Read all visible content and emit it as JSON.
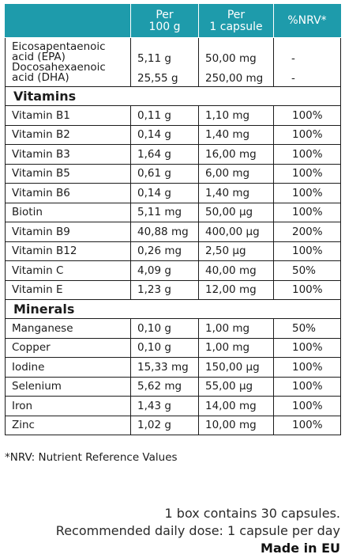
{
  "table": {
    "headers": {
      "col1": "",
      "col2_line1": "Per",
      "col2_line2": "100 g",
      "col3_line1": "Per",
      "col3_line2": "1 capsule",
      "col4": "%NRV*"
    },
    "fatty_acids": {
      "epa_line1": "Eicosapentaenoic",
      "epa_line2": "acid (EPA)",
      "dha_line1": "Docosahexaenoic",
      "dha_line2": "acid (DHA)",
      "epa_per100": "5,11 g",
      "epa_percap": "50,00 mg",
      "epa_nrv": "-",
      "dha_per100": "25,55 g",
      "dha_percap": "250,00 mg",
      "dha_nrv": "-"
    },
    "vitamins_heading": "Vitamins",
    "vitamins": [
      {
        "name": "Vitamin B1",
        "per100": "0,11 g",
        "percap": "1,10 mg",
        "nrv": "100%"
      },
      {
        "name": "Vitamin B2",
        "per100": "0,14 g",
        "percap": "1,40 mg",
        "nrv": "100%"
      },
      {
        "name": "Vitamin B3",
        "per100": "1,64 g",
        "percap": "16,00 mg",
        "nrv": "100%"
      },
      {
        "name": "Vitamin B5",
        "per100": "0,61 g",
        "percap": "6,00 mg",
        "nrv": "100%"
      },
      {
        "name": "Vitamin B6",
        "per100": "0,14 g",
        "percap": "1,40 mg",
        "nrv": "100%"
      },
      {
        "name": "Biotin",
        "per100": "5,11 mg",
        "percap": "50,00 µg",
        "nrv": "100%"
      },
      {
        "name": "Vitamin B9",
        "per100": "40,88 mg",
        "percap": "400,00 µg",
        "nrv": "200%"
      },
      {
        "name": "Vitamin B12",
        "per100": "0,26 mg",
        "percap": "2,50 µg",
        "nrv": "100%"
      },
      {
        "name": "Vitamin C",
        "per100": "4,09 g",
        "percap": "40,00 mg",
        "nrv": "50%"
      },
      {
        "name": "Vitamin E",
        "per100": "1,23 g",
        "percap": "12,00 mg",
        "nrv": "100%"
      }
    ],
    "minerals_heading": "Minerals",
    "minerals": [
      {
        "name": "Manganese",
        "per100": "0,10 g",
        "percap": "1,00 mg",
        "nrv": "50%"
      },
      {
        "name": "Copper",
        "per100": "0,10 g",
        "percap": "1,00 mg",
        "nrv": "100%"
      },
      {
        "name": "Iodine",
        "per100": "15,33 mg",
        "percap": "150,00 µg",
        "nrv": "100%"
      },
      {
        "name": "Selenium",
        "per100": "5,62 mg",
        "percap": "55,00 µg",
        "nrv": "100%"
      },
      {
        "name": "Iron",
        "per100": "1,43 g",
        "percap": "14,00 mg",
        "nrv": "100%"
      },
      {
        "name": "Zinc",
        "per100": "1,02 g",
        "percap": "10,00 mg",
        "nrv": "100%"
      }
    ]
  },
  "footnote": "*NRV: Nutrient Reference Values",
  "bottom": {
    "line1": "1 box contains 30 capsules.",
    "line2": "Recommended daily dose: 1 capsule per day",
    "line3": "Made in EU"
  },
  "colors": {
    "header_bg": "#1e9bab",
    "header_text": "#ffffff",
    "text": "#1c1c1c"
  }
}
